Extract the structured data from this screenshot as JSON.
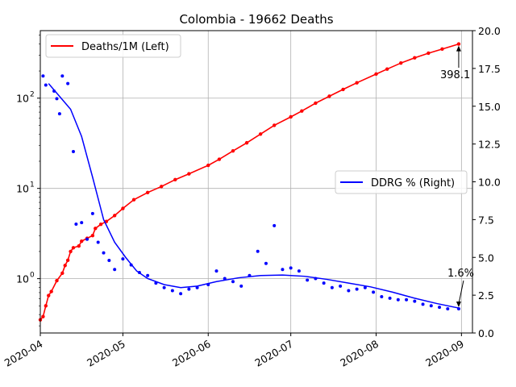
{
  "chart_data": {
    "type": "line",
    "title": "Colombia - 19662 Deaths",
    "x_ticks": [
      "2020-04",
      "2020-05",
      "2020-06",
      "2020-07",
      "2020-08",
      "2020-09"
    ],
    "x_range": [
      "2020-04-01",
      "2020-09-05"
    ],
    "left_axis": {
      "scale": "log",
      "range": [
        0.25,
        560
      ],
      "ticks": [
        {
          "value": 1,
          "label": "10",
          "exp": "0"
        },
        {
          "value": 10,
          "label": "10",
          "exp": "1"
        },
        {
          "value": 100,
          "label": "10",
          "exp": "2"
        }
      ]
    },
    "right_axis": {
      "scale": "linear",
      "range": [
        0,
        20
      ],
      "ticks": [
        "0.0",
        "2.5",
        "5.0",
        "7.5",
        "10.0",
        "12.5",
        "15.0",
        "17.5",
        "20.0"
      ]
    },
    "grid": true,
    "legends": [
      {
        "label": "Deaths/1M (Left)",
        "color": "#ff0000",
        "placement": "upper-left"
      },
      {
        "label": "DDRG % (Right)",
        "color": "#0000ff",
        "placement": "center-right"
      }
    ],
    "series": [
      {
        "name": "Deaths/1M (Left)",
        "axis": "left",
        "color": "#ff0000",
        "points": [
          [
            "2020-04-01",
            0.35
          ],
          [
            "2020-04-02",
            0.38
          ],
          [
            "2020-04-03",
            0.5
          ],
          [
            "2020-04-04",
            0.65
          ],
          [
            "2020-04-05",
            0.72
          ],
          [
            "2020-04-07",
            0.95
          ],
          [
            "2020-04-09",
            1.15
          ],
          [
            "2020-04-10",
            1.4
          ],
          [
            "2020-04-11",
            1.6
          ],
          [
            "2020-04-12",
            2.0
          ],
          [
            "2020-04-13",
            2.2
          ],
          [
            "2020-04-15",
            2.3
          ],
          [
            "2020-04-16",
            2.6
          ],
          [
            "2020-04-18",
            2.8
          ],
          [
            "2020-04-20",
            3.0
          ],
          [
            "2020-04-21",
            3.6
          ],
          [
            "2020-04-23",
            4.0
          ],
          [
            "2020-04-25",
            4.3
          ],
          [
            "2020-04-28",
            5.0
          ],
          [
            "2020-05-01",
            6.0
          ],
          [
            "2020-05-05",
            7.5
          ],
          [
            "2020-05-10",
            9.0
          ],
          [
            "2020-05-15",
            10.5
          ],
          [
            "2020-05-20",
            12.5
          ],
          [
            "2020-05-25",
            14.5
          ],
          [
            "2020-06-01",
            18.0
          ],
          [
            "2020-06-05",
            21.0
          ],
          [
            "2020-06-10",
            26.0
          ],
          [
            "2020-06-15",
            32.0
          ],
          [
            "2020-06-20",
            40.0
          ],
          [
            "2020-06-25",
            50.0
          ],
          [
            "2020-07-01",
            62.0
          ],
          [
            "2020-07-05",
            72.0
          ],
          [
            "2020-07-10",
            88.0
          ],
          [
            "2020-07-15",
            105.0
          ],
          [
            "2020-07-20",
            125.0
          ],
          [
            "2020-07-25",
            148.0
          ],
          [
            "2020-08-01",
            185.0
          ],
          [
            "2020-08-05",
            210.0
          ],
          [
            "2020-08-10",
            245.0
          ],
          [
            "2020-08-15",
            280.0
          ],
          [
            "2020-08-20",
            315.0
          ],
          [
            "2020-08-25",
            350.0
          ],
          [
            "2020-08-31",
            398.1
          ]
        ]
      },
      {
        "name": "DDRG % (Right)",
        "axis": "right",
        "color": "#0000ff",
        "points": [
          [
            "2020-04-02",
            17.0
          ],
          [
            "2020-04-03",
            16.4
          ],
          [
            "2020-04-06",
            16.0
          ],
          [
            "2020-04-07",
            15.5
          ],
          [
            "2020-04-08",
            14.5
          ],
          [
            "2020-04-09",
            17.0
          ],
          [
            "2020-04-11",
            16.5
          ],
          [
            "2020-04-13",
            12.0
          ],
          [
            "2020-04-14",
            7.2
          ],
          [
            "2020-04-16",
            7.3
          ],
          [
            "2020-04-18",
            6.2
          ],
          [
            "2020-04-20",
            7.9
          ],
          [
            "2020-04-22",
            6.0
          ],
          [
            "2020-04-24",
            5.3
          ],
          [
            "2020-04-26",
            4.8
          ],
          [
            "2020-04-28",
            4.2
          ],
          [
            "2020-05-01",
            4.9
          ],
          [
            "2020-05-04",
            4.5
          ],
          [
            "2020-05-07",
            4.0
          ],
          [
            "2020-05-10",
            3.8
          ],
          [
            "2020-05-13",
            3.3
          ],
          [
            "2020-05-16",
            3.0
          ],
          [
            "2020-05-19",
            2.8
          ],
          [
            "2020-05-22",
            2.6
          ],
          [
            "2020-05-25",
            2.9
          ],
          [
            "2020-05-28",
            3.0
          ],
          [
            "2020-06-01",
            3.2
          ],
          [
            "2020-06-04",
            4.1
          ],
          [
            "2020-06-07",
            3.6
          ],
          [
            "2020-06-10",
            3.4
          ],
          [
            "2020-06-13",
            3.1
          ],
          [
            "2020-06-16",
            3.8
          ],
          [
            "2020-06-19",
            5.4
          ],
          [
            "2020-06-22",
            4.6
          ],
          [
            "2020-06-25",
            7.1
          ],
          [
            "2020-06-28",
            4.2
          ],
          [
            "2020-07-01",
            4.3
          ],
          [
            "2020-07-04",
            4.1
          ],
          [
            "2020-07-07",
            3.5
          ],
          [
            "2020-07-10",
            3.6
          ],
          [
            "2020-07-13",
            3.3
          ],
          [
            "2020-07-16",
            3.0
          ],
          [
            "2020-07-19",
            3.1
          ],
          [
            "2020-07-22",
            2.8
          ],
          [
            "2020-07-25",
            2.9
          ],
          [
            "2020-07-28",
            3.0
          ],
          [
            "2020-07-31",
            2.7
          ],
          [
            "2020-08-03",
            2.4
          ],
          [
            "2020-08-06",
            2.3
          ],
          [
            "2020-08-09",
            2.2
          ],
          [
            "2020-08-12",
            2.2
          ],
          [
            "2020-08-15",
            2.1
          ],
          [
            "2020-08-18",
            1.9
          ],
          [
            "2020-08-21",
            1.8
          ],
          [
            "2020-08-24",
            1.7
          ],
          [
            "2020-08-27",
            1.6
          ],
          [
            "2020-08-31",
            1.6
          ]
        ],
        "trend": [
          [
            "2020-04-04",
            16.5
          ],
          [
            "2020-04-12",
            14.8
          ],
          [
            "2020-04-16",
            13.0
          ],
          [
            "2020-04-20",
            10.3
          ],
          [
            "2020-04-24",
            7.5
          ],
          [
            "2020-04-28",
            6.0
          ],
          [
            "2020-05-02",
            5.0
          ],
          [
            "2020-05-06",
            4.1
          ],
          [
            "2020-05-10",
            3.6
          ],
          [
            "2020-05-16",
            3.2
          ],
          [
            "2020-05-22",
            3.0
          ],
          [
            "2020-05-28",
            3.1
          ],
          [
            "2020-06-04",
            3.4
          ],
          [
            "2020-06-12",
            3.65
          ],
          [
            "2020-06-20",
            3.8
          ],
          [
            "2020-06-28",
            3.83
          ],
          [
            "2020-07-06",
            3.75
          ],
          [
            "2020-07-14",
            3.55
          ],
          [
            "2020-07-22",
            3.3
          ],
          [
            "2020-07-30",
            3.05
          ],
          [
            "2020-08-07",
            2.7
          ],
          [
            "2020-08-15",
            2.3
          ],
          [
            "2020-08-23",
            1.95
          ],
          [
            "2020-08-31",
            1.65
          ]
        ]
      }
    ],
    "annotations": [
      {
        "text": "398.1",
        "x": "2020-08-31",
        "axis": "left",
        "value": 398.1
      },
      {
        "text": "1.6%",
        "x": "2020-08-31",
        "axis": "right",
        "value": 1.6
      }
    ]
  }
}
